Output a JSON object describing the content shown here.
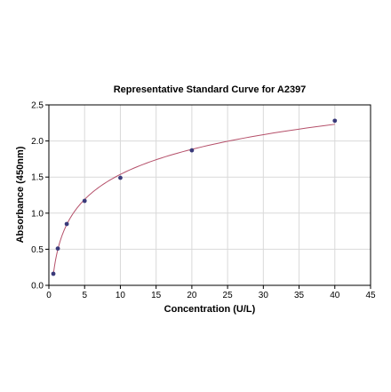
{
  "chart_data": {
    "type": "scatter",
    "title": "Representative Standard Curve for A2397",
    "xlabel": "Concentration (U/L)",
    "ylabel": "Absorbance (450nm)",
    "xlim": [
      0,
      45
    ],
    "ylim": [
      0,
      2.5
    ],
    "xticks": [
      0,
      5,
      10,
      15,
      20,
      25,
      30,
      35,
      40,
      45
    ],
    "yticks": [
      0.0,
      0.5,
      1.0,
      1.5,
      2.0,
      2.5
    ],
    "xtick_labels": [
      "0",
      "5",
      "10",
      "15",
      "20",
      "25",
      "30",
      "35",
      "40",
      "45"
    ],
    "ytick_labels": [
      "0.0",
      "0.5",
      "1.0",
      "1.5",
      "2.0",
      "2.5"
    ],
    "grid": true,
    "series": [
      {
        "points": [
          {
            "x": 0.625,
            "y": 0.16
          },
          {
            "x": 1.25,
            "y": 0.51
          },
          {
            "x": 2.5,
            "y": 0.85
          },
          {
            "x": 5,
            "y": 1.17
          },
          {
            "x": 10,
            "y": 1.49
          },
          {
            "x": 20,
            "y": 1.87
          },
          {
            "x": 40,
            "y": 2.28
          }
        ],
        "fit": "log-curve",
        "point_color": "#3a3a7a",
        "line_color": "#b5506a"
      }
    ]
  }
}
